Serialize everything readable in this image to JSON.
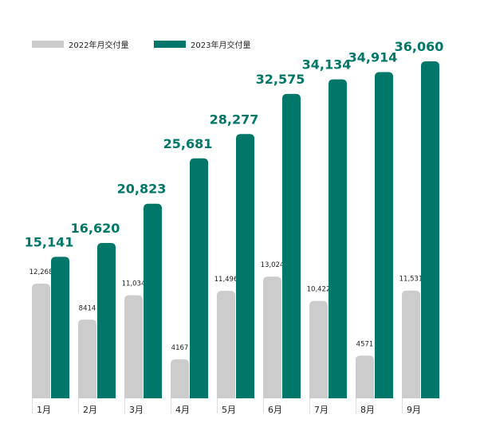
{
  "colors": {
    "series2022": "#cccccc",
    "series2023": "#007769",
    "axisText": "#222222"
  },
  "legend": [
    {
      "label": "2022年月交付量",
      "color": "#cccccc"
    },
    {
      "label": "2023年月交付量",
      "color": "#007769"
    }
  ],
  "chart_data": {
    "type": "bar",
    "title": "",
    "xlabel": "",
    "ylabel": "",
    "categories": [
      "1月",
      "2月",
      "3月",
      "4月",
      "5月",
      "6月",
      "7月",
      "8月",
      "9月"
    ],
    "series": [
      {
        "name": "2022年月交付量",
        "values": [
          12268,
          8414,
          11034,
          4167,
          11496,
          13024,
          10422,
          4571,
          11531
        ],
        "labels": [
          "12,268",
          "8414",
          "11,034",
          "4167",
          "11,496",
          "13,024",
          "10,422",
          "4571",
          "11,531"
        ]
      },
      {
        "name": "2023年月交付量",
        "values": [
          15141,
          16620,
          20823,
          25681,
          28277,
          32575,
          34134,
          34914,
          36060
        ],
        "labels": [
          "15,141",
          "16,620",
          "20,823",
          "25,681",
          "28,277",
          "32,575",
          "34,134",
          "34,914",
          "36,060"
        ]
      }
    ],
    "ylim": [
      0,
      36060
    ],
    "grid": false,
    "legend_position": "top-left"
  }
}
